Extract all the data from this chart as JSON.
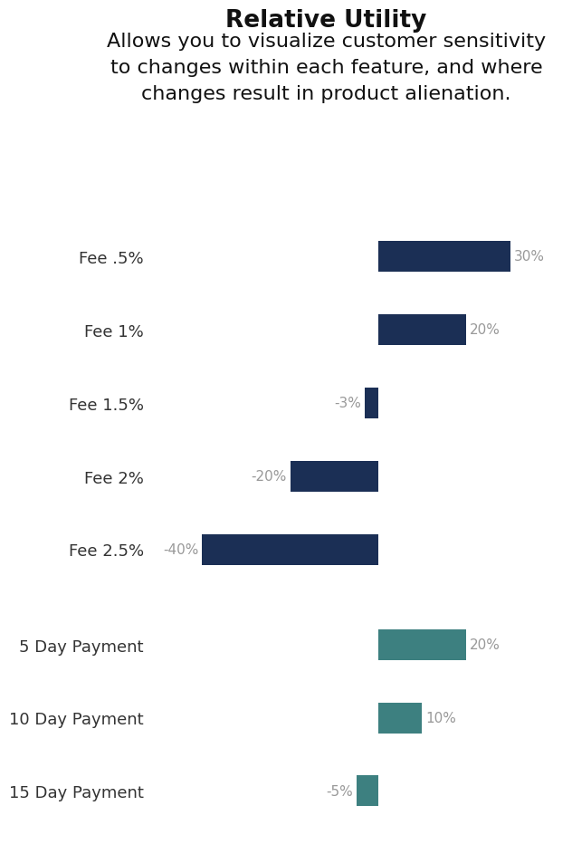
{
  "title": "Relative Utility",
  "subtitle": "Allows you to visualize customer sensitivity\nto changes within each feature, and where\nchanges result in product alienation.",
  "categories": [
    "Fee .5%",
    "Fee 1%",
    "Fee 1.5%",
    "Fee 2%",
    "Fee 2.5%",
    "5 Day Payment",
    "10 Day Payment",
    "15 Day Payment"
  ],
  "values": [
    30,
    20,
    -3,
    -20,
    -40,
    20,
    10,
    -5
  ],
  "bar_colors": [
    "#1b2f55",
    "#1b2f55",
    "#1b2f55",
    "#1b2f55",
    "#1b2f55",
    "#3d8080",
    "#3d8080",
    "#3d8080"
  ],
  "xlim": [
    -50,
    42
  ],
  "background_color": "#ffffff",
  "title_fontsize": 19,
  "subtitle_fontsize": 16,
  "label_fontsize": 11,
  "category_fontsize": 13,
  "bar_height": 0.42,
  "label_color": "#999999",
  "category_color": "#333333",
  "y_positions": [
    7.0,
    6.0,
    5.0,
    4.0,
    3.0,
    1.7,
    0.7,
    -0.3
  ],
  "ylim": [
    -0.9,
    7.7
  ]
}
